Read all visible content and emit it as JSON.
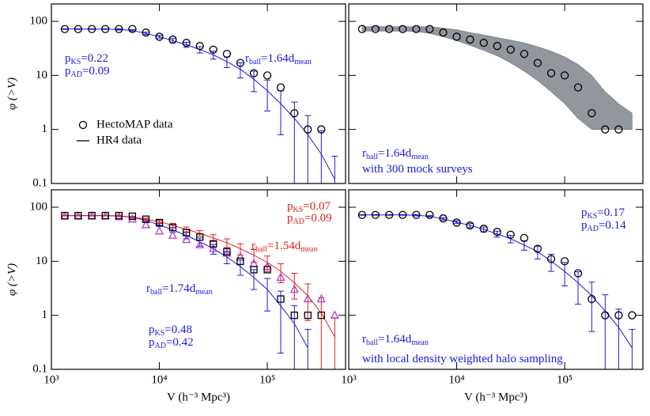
{
  "chart_data": [
    {
      "type": "line",
      "xlim": [
        1000,
        530000
      ],
      "ylim": [
        0.1,
        210
      ],
      "log": true,
      "xticks": [
        1000,
        10000,
        100000
      ],
      "yticks": [
        0.1,
        1,
        10,
        100
      ],
      "yticklabels": true,
      "ylabel": "φ (>V)",
      "x": [
        1330,
        1770,
        2370,
        3160,
        4220,
        5620,
        7500,
        10000,
        13300,
        17800,
        23700,
        31600,
        42200,
        56200,
        75000,
        100000,
        133000,
        178000,
        237000,
        316000,
        421000
      ],
      "series": [
        {
          "name": "HectoMAP data",
          "marker": "circle",
          "color": "#000000",
          "values": [
            72,
            72,
            72,
            72,
            72,
            72,
            62,
            52,
            46,
            40,
            35,
            30,
            25,
            17,
            11,
            10,
            6,
            2,
            1,
            1,
            null
          ]
        }
      ],
      "models": [
        {
          "name": "HR4 data",
          "color": "#1a1adb",
          "values": [
            72,
            72,
            72,
            72,
            71,
            68,
            60,
            52,
            44,
            37,
            30,
            24,
            18,
            13,
            8.5,
            5.2,
            3,
            1.6,
            0.8,
            0.35,
            0.12
          ],
          "errors": [
            1,
            1,
            1,
            1,
            2,
            2,
            3,
            3,
            4,
            4,
            4,
            4,
            4,
            4,
            3.5,
            3,
            2.2,
            1.6,
            1,
            0.6,
            0.2
          ]
        }
      ],
      "annotations": [
        {
          "color": "#1a1adb",
          "parts": [
            {
              "t": "p"
            },
            {
              "t": "KS",
              "sub": true
            },
            {
              "t": "=0.22"
            }
          ]
        },
        {
          "color": "#1a1adb",
          "parts": [
            {
              "t": "p"
            },
            {
              "t": "AD",
              "sub": true
            },
            {
              "t": "=0.09"
            }
          ]
        },
        {
          "color": "#1a1adb",
          "parts": [
            {
              "t": "r"
            },
            {
              "t": "ball",
              "sub": true
            },
            {
              "t": "=1.64d"
            },
            {
              "t": "mean",
              "sub": true
            }
          ]
        }
      ]
    },
    {
      "type": "line",
      "xlim": [
        1000,
        530000
      ],
      "ylim": [
        0.1,
        210
      ],
      "log": true,
      "xticks": [
        1000,
        10000,
        100000
      ],
      "yticks": [
        0.1,
        1,
        10,
        100
      ],
      "yticklabels": false,
      "x": [
        1330,
        1770,
        2370,
        3160,
        4220,
        5620,
        7500,
        10000,
        13300,
        17800,
        23700,
        31600,
        42200,
        56200,
        75000,
        100000,
        133000,
        178000,
        237000,
        316000,
        421000
      ],
      "band": {
        "color": "#6e747c",
        "upper": [
          80,
          80,
          80,
          80,
          80,
          80,
          75,
          70,
          62,
          56,
          50,
          45,
          40,
          34,
          28,
          22,
          16,
          10,
          5,
          3,
          2
        ],
        "lower": [
          66,
          66,
          66,
          66,
          65,
          60,
          52,
          44,
          36,
          29,
          23,
          17,
          12,
          8,
          5,
          3,
          1.6,
          1,
          1,
          1,
          1
        ]
      },
      "series": [
        {
          "marker": "circle",
          "color": "#000000",
          "values": [
            72,
            72,
            72,
            72,
            72,
            72,
            62,
            52,
            46,
            40,
            35,
            30,
            25,
            17,
            11,
            10,
            6,
            2,
            1,
            1,
            null
          ]
        }
      ],
      "models": [],
      "annotations": [
        {
          "color": "#1a1adb",
          "parts": [
            {
              "t": "r"
            },
            {
              "t": "ball",
              "sub": true
            },
            {
              "t": "=1.64d"
            },
            {
              "t": "mean",
              "sub": true
            }
          ]
        },
        {
          "color": "#1a1adb",
          "parts": [
            {
              "t": "with 300 mock surveys"
            }
          ]
        }
      ]
    },
    {
      "type": "line",
      "xlim": [
        1000,
        530000
      ],
      "ylim": [
        0.1,
        210
      ],
      "log": true,
      "xticks": [
        {
          "value": 1000,
          "label": "10³"
        },
        {
          "value": 10000,
          "label": "10⁴"
        },
        {
          "value": 100000,
          "label": "10⁵"
        }
      ],
      "yticks": [
        0.1,
        1,
        10,
        100
      ],
      "yticklabels": true,
      "ylabel": "φ (>V)",
      "xlabel": "V (h⁻³ Mpc³)",
      "x": [
        1330,
        1770,
        2370,
        3160,
        4220,
        5620,
        7500,
        10000,
        13300,
        17800,
        23700,
        31600,
        42200,
        56200,
        75000,
        100000,
        133000,
        178000,
        237000,
        316000,
        421000
      ],
      "series": [
        {
          "marker": "triangle",
          "color": "#b040c8",
          "values": [
            68,
            68,
            68,
            68,
            66,
            60,
            47,
            36,
            30,
            25,
            20,
            17,
            14,
            12,
            9,
            8,
            5,
            3,
            2,
            2,
            1
          ]
        },
        {
          "marker": "square",
          "color": "#000000",
          "values": [
            70,
            70,
            70,
            70,
            70,
            68,
            60,
            52,
            42,
            34,
            28,
            21,
            15,
            10,
            7,
            7,
            2,
            1,
            1,
            1,
            null
          ]
        }
      ],
      "models": [
        {
          "color": "#1a1adb",
          "values": [
            70,
            70,
            70,
            70,
            69,
            65,
            57,
            47,
            38,
            30,
            23,
            17,
            12,
            8,
            5,
            3,
            1.5,
            0.7,
            0.25,
            null,
            null
          ],
          "errors": [
            1,
            1,
            1,
            1,
            2,
            2,
            3,
            3,
            4,
            4,
            4,
            3.5,
            3,
            2.5,
            2,
            1.8,
            1.3,
            0.8,
            0.3,
            null,
            null
          ]
        },
        {
          "color": "#e0201c",
          "values": [
            70,
            70,
            70,
            70,
            69,
            66,
            60,
            54,
            46,
            39,
            33,
            27,
            22,
            17,
            13,
            9.5,
            6.5,
            4,
            2.3,
            1.1,
            0.4
          ],
          "errors": [
            1,
            1,
            1,
            1,
            2,
            2,
            3,
            3,
            4,
            4,
            4,
            4,
            4,
            4,
            3.5,
            3,
            2.5,
            2,
            1.5,
            1,
            0.5
          ]
        }
      ],
      "annotations": [
        {
          "color": "#e0201c",
          "parts": [
            {
              "t": "p"
            },
            {
              "t": "KS",
              "sub": true
            },
            {
              "t": "=0.07"
            }
          ]
        },
        {
          "color": "#e0201c",
          "parts": [
            {
              "t": "p"
            },
            {
              "t": "AD",
              "sub": true
            },
            {
              "t": "=0.09"
            }
          ]
        },
        {
          "color": "#e0201c",
          "parts": [
            {
              "t": "r"
            },
            {
              "t": "ball",
              "sub": true
            },
            {
              "t": "=1.54d"
            },
            {
              "t": "mean",
              "sub": true
            }
          ]
        },
        {
          "color": "#1a1adb",
          "parts": [
            {
              "t": "r"
            },
            {
              "t": "ball",
              "sub": true
            },
            {
              "t": "=1.74d"
            },
            {
              "t": "mean",
              "sub": true
            }
          ]
        },
        {
          "color": "#1a1adb",
          "parts": [
            {
              "t": "p"
            },
            {
              "t": "KS",
              "sub": true
            },
            {
              "t": "=0.48"
            }
          ]
        },
        {
          "color": "#1a1adb",
          "parts": [
            {
              "t": "p"
            },
            {
              "t": "AD",
              "sub": true
            },
            {
              "t": "=0.42"
            }
          ]
        }
      ]
    },
    {
      "type": "line",
      "xlim": [
        1000,
        530000
      ],
      "ylim": [
        0.1,
        210
      ],
      "log": true,
      "xticks": [
        {
          "value": 1000,
          "label": "10³"
        },
        {
          "value": 10000,
          "label": "10⁴"
        },
        {
          "value": 100000,
          "label": "10⁵"
        }
      ],
      "yticks": [
        0.1,
        1,
        10,
        100
      ],
      "yticklabels": false,
      "xlabel": "V (h⁻³ Mpc³)",
      "x": [
        1330,
        1770,
        2370,
        3160,
        4220,
        5620,
        7500,
        10000,
        13300,
        17800,
        23700,
        31600,
        42200,
        56200,
        75000,
        100000,
        133000,
        178000,
        237000,
        316000,
        421000
      ],
      "series": [
        {
          "marker": "circle",
          "color": "#000000",
          "values": [
            72,
            72,
            72,
            72,
            72,
            72,
            62,
            52,
            46,
            40,
            35,
            31,
            27,
            17,
            11,
            10,
            6,
            2,
            1,
            1,
            1
          ]
        }
      ],
      "models": [
        {
          "color": "#1a1adb",
          "values": [
            72,
            72,
            72,
            72,
            71,
            68,
            61,
            53,
            46,
            39,
            32,
            26,
            20,
            15,
            10,
            6.5,
            4,
            2.3,
            1.2,
            0.6,
            0.25
          ],
          "errors": [
            1,
            1,
            1,
            1,
            2,
            2,
            3,
            3,
            4,
            4,
            4,
            4,
            4,
            4,
            3.5,
            3,
            2.4,
            1.8,
            1.2,
            0.7,
            0.3
          ]
        }
      ],
      "annotations": [
        {
          "color": "#1a1adb",
          "parts": [
            {
              "t": "p"
            },
            {
              "t": "KS",
              "sub": true
            },
            {
              "t": "=0.17"
            }
          ]
        },
        {
          "color": "#1a1adb",
          "parts": [
            {
              "t": "p"
            },
            {
              "t": "AD",
              "sub": true
            },
            {
              "t": "=0.14"
            }
          ]
        },
        {
          "color": "#1a1adb",
          "parts": [
            {
              "t": "r"
            },
            {
              "t": "ball",
              "sub": true
            },
            {
              "t": "=1.64d"
            },
            {
              "t": "mean",
              "sub": true
            }
          ]
        },
        {
          "color": "#1a1adb",
          "parts": [
            {
              "t": "with local density weighted halo sampling"
            }
          ]
        }
      ]
    }
  ]
}
